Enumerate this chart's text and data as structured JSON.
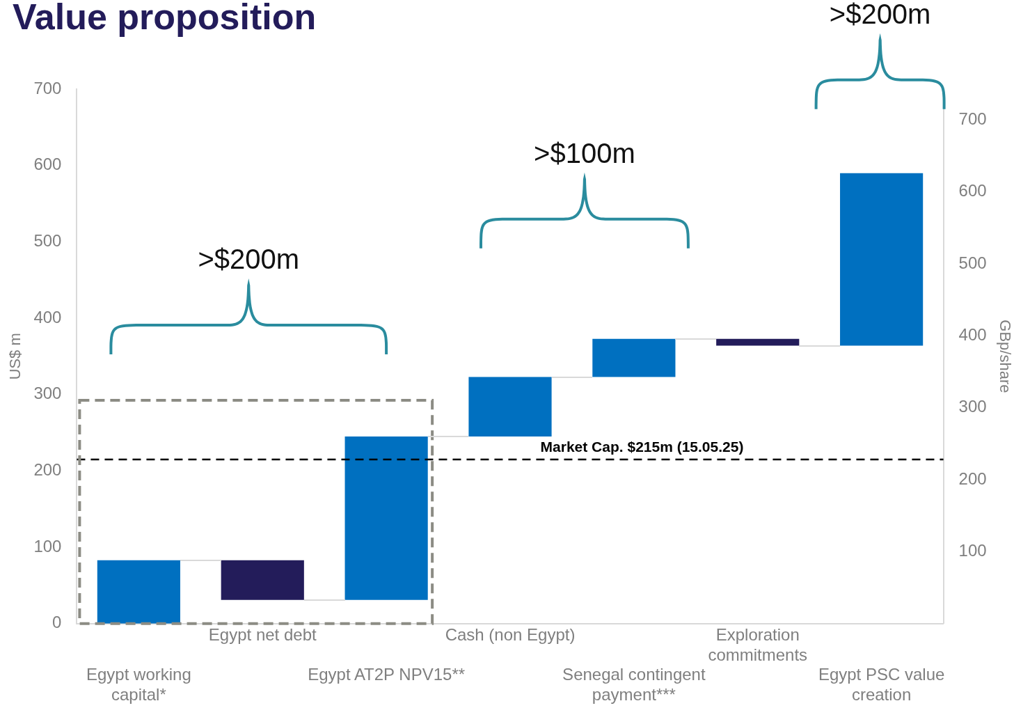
{
  "chart_data": {
    "type": "bar",
    "title": "Value proposition",
    "ylabel": "US$ m",
    "y2label": "GBp/share",
    "categories": [
      "Egypt working capital*",
      "Egypt net debt",
      "Egypt AT2P NPV15**",
      "Cash (non Egypt)",
      "Senegal contingent payment***",
      "Exploration commitments",
      "Egypt PSC value creation"
    ],
    "base": [
      0,
      83,
      31,
      245,
      323,
      373,
      364
    ],
    "values": [
      83,
      -52,
      214,
      78,
      50,
      -9,
      226
    ],
    "colors": [
      "#0070c0",
      "#231c5a",
      "#0070c0",
      "#0070c0",
      "#0070c0",
      "#231c5a",
      "#0070c0"
    ],
    "ylim": [
      0,
      700
    ],
    "yticks": [
      0,
      100,
      200,
      300,
      400,
      500,
      600,
      700
    ],
    "y2lim": [
      0,
      743
    ],
    "y2ticks": [
      100,
      200,
      300,
      400,
      500,
      600,
      700
    ],
    "ref_lines": [
      {
        "axis": "y",
        "value": 215,
        "label": "Market Cap. $215m (15.05.25)",
        "color": "#000000",
        "line_style": "dashed"
      }
    ],
    "annotations": [
      ">$200m",
      ">$100m",
      ">$200m"
    ],
    "grid": false,
    "legend": false
  }
}
